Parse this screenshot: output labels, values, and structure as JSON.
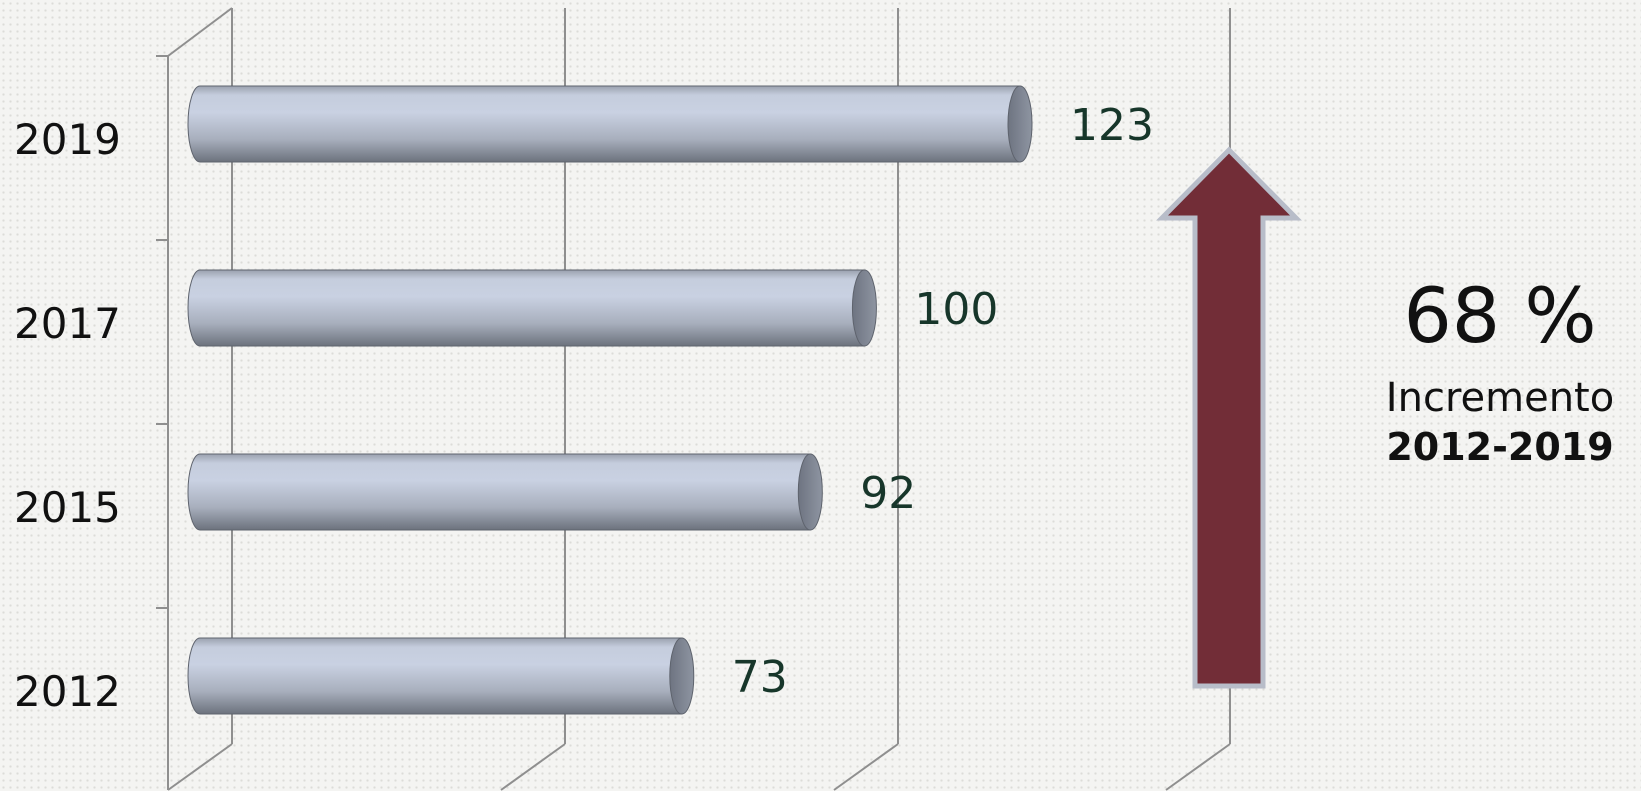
{
  "chart_data": {
    "type": "bar",
    "orientation": "horizontal",
    "categories": [
      "2019",
      "2017",
      "2015",
      "2012"
    ],
    "values": [
      123,
      100,
      92,
      73
    ],
    "title": "",
    "xlabel": "",
    "ylabel": "",
    "grid": true,
    "bar_color": "#c3cbdb",
    "arrow_color": "#722d37",
    "label_color": "#17362a"
  },
  "summary": {
    "percent": "68 %",
    "caption": "Incremento",
    "range": "2012-2019"
  }
}
